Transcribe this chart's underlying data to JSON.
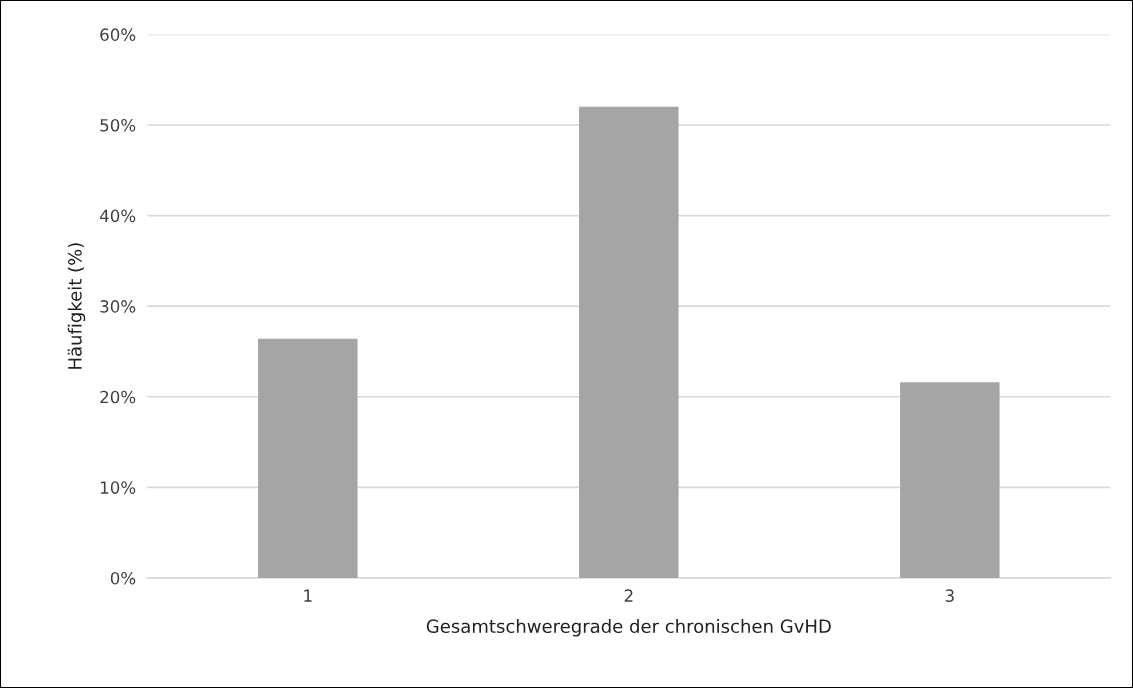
{
  "chart_data": {
    "type": "bar",
    "xlabel": "Gesamtschweregrade der chronischen GvHD",
    "ylabel": "Häufigkeit (%)",
    "categories": [
      "1",
      "2",
      "3"
    ],
    "values": [
      26.4,
      52.0,
      21.6
    ],
    "color": "#a5a5a5",
    "ylim": [
      0,
      60
    ],
    "yticks": [
      {
        "value": 0,
        "label": "0%"
      },
      {
        "value": 10,
        "label": "10%"
      },
      {
        "value": 20,
        "label": "20%"
      },
      {
        "value": 30,
        "label": "30%"
      },
      {
        "value": 40,
        "label": "40%"
      },
      {
        "value": 50,
        "label": "50%"
      },
      {
        "value": 60,
        "label": "60%"
      }
    ],
    "grid": "y"
  }
}
